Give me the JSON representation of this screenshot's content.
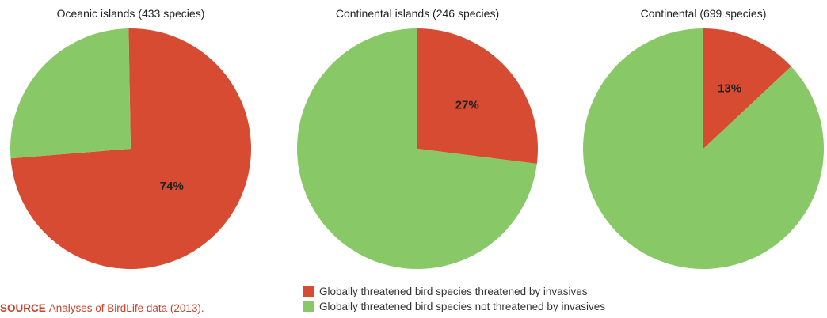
{
  "colors": {
    "threatened": "#d64b32",
    "not_threatened": "#88c866"
  },
  "chart_data": [
    {
      "type": "pie",
      "title": "Oceanic islands (433 species)",
      "slices": [
        {
          "key": "threatened",
          "value": 74,
          "label": "74%"
        },
        {
          "key": "not_threatened",
          "value": 26,
          "label": ""
        }
      ]
    },
    {
      "type": "pie",
      "title": "Continental islands (246 species)",
      "slices": [
        {
          "key": "threatened",
          "value": 27,
          "label": "27%"
        },
        {
          "key": "not_threatened",
          "value": 73,
          "label": ""
        }
      ]
    },
    {
      "type": "pie",
      "title": "Continental (699 species)",
      "slices": [
        {
          "key": "threatened",
          "value": 13,
          "label": "13%"
        },
        {
          "key": "not_threatened",
          "value": 87,
          "label": ""
        }
      ]
    }
  ],
  "legend": [
    {
      "key": "threatened",
      "label": "Globally threatened bird species threatened by invasives"
    },
    {
      "key": "not_threatened",
      "label": "Globally threatened bird species not threatened by invasives"
    }
  ],
  "source": {
    "label": "SOURCE",
    "text": "Analyses of BirdLife data (2013)."
  }
}
